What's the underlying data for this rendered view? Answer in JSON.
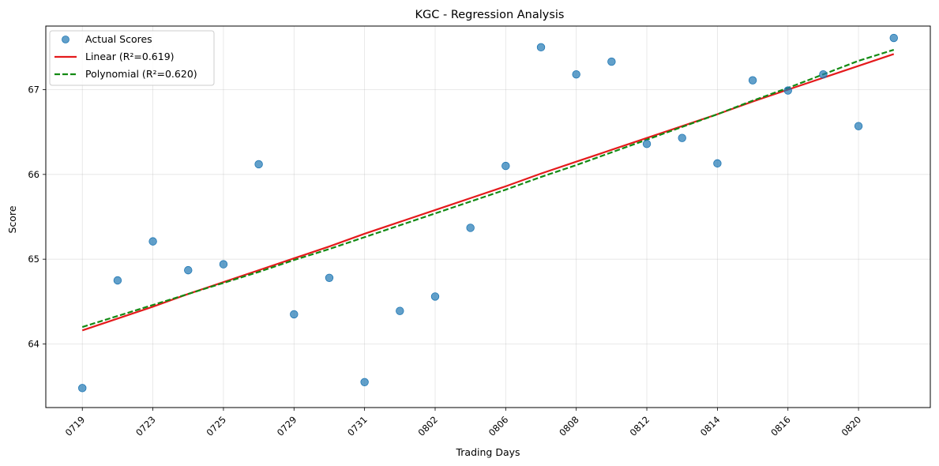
{
  "chart_data": {
    "type": "scatter",
    "title": "KGC - Regression Analysis",
    "xlabel": "Trading Days",
    "ylabel": "Score",
    "ylim": [
      63.25,
      67.75
    ],
    "yticks": [
      64,
      65,
      66,
      67
    ],
    "grid": true,
    "legend_position": "top-left",
    "tick_labels_x": [
      "0719",
      "0723",
      "0725",
      "0729",
      "0731",
      "0802",
      "0806",
      "0808",
      "0812",
      "0814",
      "0816",
      "0820"
    ],
    "x": [
      0,
      1,
      2,
      3,
      4,
      5,
      6,
      7,
      8,
      9,
      10,
      11,
      12,
      13,
      14,
      15,
      16,
      17,
      18,
      19,
      20,
      21,
      22,
      23
    ],
    "series": [
      {
        "name": "Actual Scores",
        "kind": "scatter",
        "color": "#1f77b4",
        "values": [
          63.48,
          64.75,
          65.21,
          64.87,
          64.94,
          66.12,
          64.35,
          64.78,
          63.55,
          64.39,
          64.56,
          65.37,
          66.1,
          67.5,
          67.18,
          67.33,
          66.36,
          66.43,
          66.13,
          67.11,
          66.99,
          67.18,
          66.57,
          67.61
        ]
      },
      {
        "name": "Linear (R²=0.619)",
        "kind": "line",
        "color": "#e41a1c",
        "style": "solid",
        "values": [
          64.16,
          64.3,
          64.44,
          64.59,
          64.73,
          64.87,
          65.01,
          65.15,
          65.3,
          65.44,
          65.58,
          65.72,
          65.86,
          66.01,
          66.15,
          66.29,
          66.43,
          66.57,
          66.71,
          66.86,
          67.0,
          67.14,
          67.28,
          67.42
        ]
      },
      {
        "name": "Polynomial (R²=0.620)",
        "kind": "line",
        "color": "#138a13",
        "style": "dashed",
        "values": [
          64.2,
          64.33,
          64.46,
          64.59,
          64.72,
          64.85,
          64.99,
          65.12,
          65.26,
          65.4,
          65.54,
          65.68,
          65.82,
          65.97,
          66.11,
          66.26,
          66.41,
          66.56,
          66.71,
          66.87,
          67.02,
          67.18,
          67.34,
          67.47
        ]
      }
    ]
  }
}
